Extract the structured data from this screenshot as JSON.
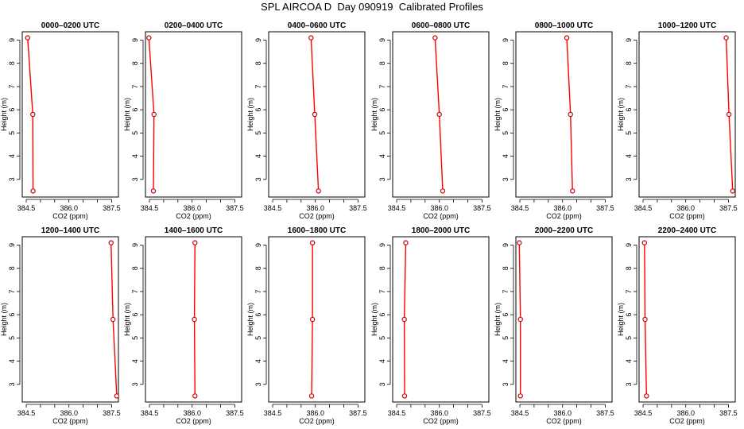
{
  "title": "SPL AIRCOA D  Day 090919  Calibrated Profiles",
  "colors": {
    "line": "#ff0000",
    "point": "#cc0000",
    "axis": "#000000"
  },
  "chart_data": [
    {
      "type": "line",
      "title": "0000–0200 UTC",
      "xlabel": "CO2 (ppm)",
      "ylabel": "Height (m)",
      "xlim": [
        384.5,
        387.5
      ],
      "ylim": [
        3,
        9
      ],
      "xticks": [
        "384.5",
        "386.0",
        "387.5"
      ],
      "yticks": [
        "3",
        "4",
        "5",
        "6",
        "7",
        "8",
        "9"
      ],
      "grid": false,
      "series": [
        {
          "x": [
            384.55,
            384.73,
            384.74
          ],
          "y": [
            9.1,
            5.8,
            2.5
          ]
        }
      ]
    },
    {
      "type": "line",
      "title": "0200–0400 UTC",
      "xlabel": "CO2 (ppm)",
      "ylabel": "Height (m)",
      "xlim": [
        384.5,
        387.5
      ],
      "ylim": [
        3,
        9
      ],
      "xticks": [
        "384.5",
        "386.0",
        "387.5"
      ],
      "yticks": [
        "3",
        "4",
        "5",
        "6",
        "7",
        "8",
        "9"
      ],
      "grid": false,
      "series": [
        {
          "x": [
            384.48,
            384.66,
            384.64
          ],
          "y": [
            9.1,
            5.8,
            2.5
          ]
        }
      ]
    },
    {
      "type": "line",
      "title": "0400–0600 UTC",
      "xlabel": "CO2 (ppm)",
      "ylabel": "Height (m)",
      "xlim": [
        384.5,
        387.5
      ],
      "ylim": [
        3,
        9
      ],
      "xticks": [
        "384.5",
        "386.0",
        "387.5"
      ],
      "yticks": [
        "3",
        "4",
        "5",
        "6",
        "7",
        "8",
        "9"
      ],
      "grid": false,
      "series": [
        {
          "x": [
            385.85,
            385.98,
            386.11
          ],
          "y": [
            9.1,
            5.8,
            2.5
          ]
        }
      ]
    },
    {
      "type": "line",
      "title": "0600–0800 UTC",
      "xlabel": "CO2 (ppm)",
      "ylabel": "Height (m)",
      "xlim": [
        384.5,
        387.5
      ],
      "ylim": [
        3,
        9
      ],
      "xticks": [
        "384.5",
        "386.0",
        "387.5"
      ],
      "yticks": [
        "3",
        "4",
        "5",
        "6",
        "7",
        "8",
        "9"
      ],
      "grid": false,
      "series": [
        {
          "x": [
            385.85,
            386.0,
            386.12
          ],
          "y": [
            9.1,
            5.8,
            2.5
          ]
        }
      ]
    },
    {
      "type": "line",
      "title": "0800–1000 UTC",
      "xlabel": "CO2 (ppm)",
      "ylabel": "Height (m)",
      "xlim": [
        384.5,
        387.5
      ],
      "ylim": [
        3,
        9
      ],
      "xticks": [
        "384.5",
        "386.0",
        "387.5"
      ],
      "yticks": [
        "3",
        "4",
        "5",
        "6",
        "7",
        "8",
        "9"
      ],
      "grid": false,
      "series": [
        {
          "x": [
            386.15,
            386.28,
            386.35
          ],
          "y": [
            9.1,
            5.8,
            2.5
          ]
        }
      ]
    },
    {
      "type": "line",
      "title": "1000–1200 UTC",
      "xlabel": "CO2 (ppm)",
      "ylabel": "Height (m)",
      "xlim": [
        384.5,
        387.5
      ],
      "ylim": [
        3,
        9
      ],
      "xticks": [
        "384.5",
        "386.0",
        "387.5"
      ],
      "yticks": [
        "3",
        "4",
        "5",
        "6",
        "7",
        "8",
        "9"
      ],
      "grid": false,
      "series": [
        {
          "x": [
            387.42,
            387.52,
            387.65
          ],
          "y": [
            9.1,
            5.8,
            2.5
          ]
        }
      ]
    },
    {
      "type": "line",
      "title": "1200–1400 UTC",
      "xlabel": "CO2 (ppm)",
      "ylabel": "Height (m)",
      "xlim": [
        384.5,
        387.5
      ],
      "ylim": [
        3,
        9
      ],
      "xticks": [
        "384.5",
        "386.0",
        "387.5"
      ],
      "yticks": [
        "3",
        "4",
        "5",
        "6",
        "7",
        "8",
        "9"
      ],
      "grid": false,
      "series": [
        {
          "x": [
            387.48,
            387.55,
            387.68
          ],
          "y": [
            9.1,
            5.8,
            2.5
          ]
        }
      ]
    },
    {
      "type": "line",
      "title": "1400–1600 UTC",
      "xlabel": "CO2 (ppm)",
      "ylabel": "Height (m)",
      "xlim": [
        384.5,
        387.5
      ],
      "ylim": [
        3,
        9
      ],
      "xticks": [
        "384.5",
        "386.0",
        "387.5"
      ],
      "yticks": [
        "3",
        "4",
        "5",
        "6",
        "7",
        "8",
        "9"
      ],
      "grid": false,
      "series": [
        {
          "x": [
            386.1,
            386.08,
            386.1
          ],
          "y": [
            9.1,
            5.8,
            2.5
          ]
        }
      ]
    },
    {
      "type": "line",
      "title": "1600–1800 UTC",
      "xlabel": "CO2 (ppm)",
      "ylabel": "Height (m)",
      "xlim": [
        384.5,
        387.5
      ],
      "ylim": [
        3,
        9
      ],
      "xticks": [
        "384.5",
        "386.0",
        "387.5"
      ],
      "yticks": [
        "3",
        "4",
        "5",
        "6",
        "7",
        "8",
        "9"
      ],
      "grid": false,
      "series": [
        {
          "x": [
            385.9,
            385.9,
            385.87
          ],
          "y": [
            9.1,
            5.8,
            2.5
          ]
        }
      ]
    },
    {
      "type": "line",
      "title": "1800–2000 UTC",
      "xlabel": "CO2 (ppm)",
      "ylabel": "Height (m)",
      "xlim": [
        384.5,
        387.5
      ],
      "ylim": [
        3,
        9
      ],
      "xticks": [
        "384.5",
        "386.0",
        "387.5"
      ],
      "yticks": [
        "3",
        "4",
        "5",
        "6",
        "7",
        "8",
        "9"
      ],
      "grid": false,
      "series": [
        {
          "x": [
            384.82,
            384.77,
            384.78
          ],
          "y": [
            9.1,
            5.8,
            2.5
          ]
        }
      ]
    },
    {
      "type": "line",
      "title": "2000–2200 UTC",
      "xlabel": "CO2 (ppm)",
      "ylabel": "Height (m)",
      "xlim": [
        384.5,
        387.5
      ],
      "ylim": [
        3,
        9
      ],
      "xticks": [
        "384.5",
        "386.0",
        "387.5"
      ],
      "yticks": [
        "3",
        "4",
        "5",
        "6",
        "7",
        "8",
        "9"
      ],
      "grid": false,
      "series": [
        {
          "x": [
            384.48,
            384.52,
            384.52
          ],
          "y": [
            9.1,
            5.8,
            2.5
          ]
        }
      ]
    },
    {
      "type": "line",
      "title": "2200–2400 UTC",
      "xlabel": "CO2 (ppm)",
      "ylabel": "Height (m)",
      "xlim": [
        384.5,
        387.5
      ],
      "ylim": [
        3,
        9
      ],
      "xticks": [
        "384.5",
        "386.0",
        "387.5"
      ],
      "yticks": [
        "3",
        "4",
        "5",
        "6",
        "7",
        "8",
        "9"
      ],
      "grid": false,
      "series": [
        {
          "x": [
            384.55,
            384.57,
            384.62
          ],
          "y": [
            9.1,
            5.8,
            2.5
          ]
        }
      ]
    }
  ]
}
